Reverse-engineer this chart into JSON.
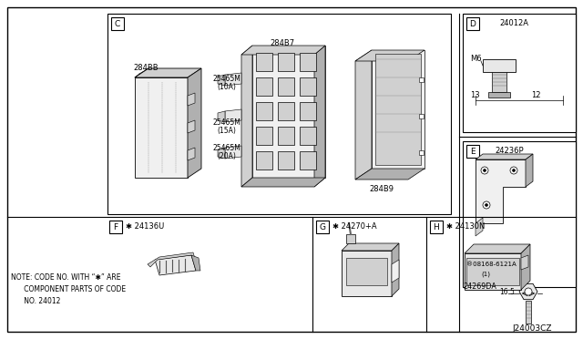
{
  "bg_color": "#ffffff",
  "line_color": "#000000",
  "fig_width": 6.4,
  "fig_height": 3.72,
  "diagram_code": "J24003CZ",
  "note_line1": "NOTE: CODE NO. WITH",
  "note_sym": " \"*\" ARE",
  "note_line2": "     COMPONENT PARTS OF CODE",
  "note_line3": "     NO. 24012",
  "gray_fill": "#e8e8e8",
  "light_gray": "#f0f0f0",
  "mid_gray": "#d0d0d0",
  "dark_gray": "#b0b0b0"
}
